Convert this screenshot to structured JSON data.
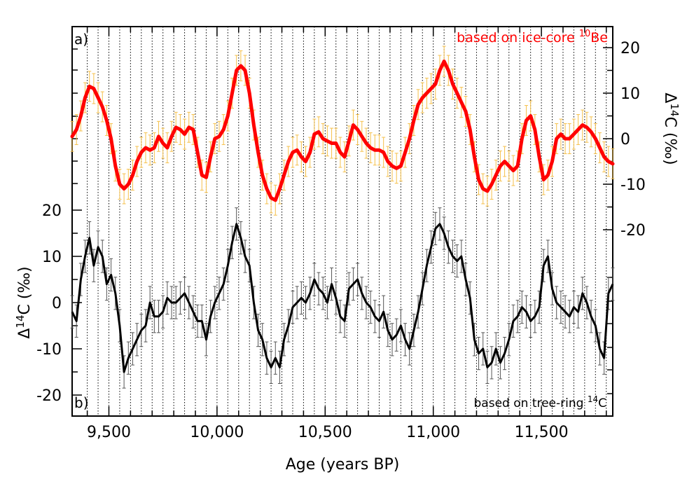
{
  "chart_data": [
    {
      "panel_label": "a)",
      "type": "line",
      "annotation": {
        "text": "based on ice-core ",
        "sup": "10",
        "suffix": "Be"
      },
      "ylabel": {
        "prefix": "Δ",
        "sup": "14",
        "suffix": "C (‰)"
      },
      "y_axis_side": "right",
      "yticks": [
        "20",
        "10",
        "0",
        "-10",
        "-20"
      ],
      "ylim": [
        -20,
        25
      ],
      "xlim": [
        9330,
        11830
      ],
      "line_color": "#ff0000",
      "errorbar_color": "#f5c04a",
      "error": 3.3,
      "series": [
        {
          "x": [
            9330,
            9350,
            9370,
            9390,
            9410,
            9430,
            9450,
            9470,
            9490,
            9510,
            9530,
            9550,
            9570,
            9590,
            9610,
            9630,
            9650,
            9670,
            9690,
            9710,
            9730,
            9750,
            9770,
            9790,
            9810,
            9830,
            9850,
            9870,
            9890,
            9910,
            9930,
            9950,
            9970,
            9990,
            10010,
            10030,
            10050,
            10070,
            10090,
            10110,
            10130,
            10150,
            10170,
            10190,
            10210,
            10230,
            10250,
            10270,
            10290,
            10310,
            10330,
            10350,
            10370,
            10390,
            10410,
            10430,
            10450,
            10470,
            10490,
            10510,
            10530,
            10550,
            10570,
            10590,
            10610,
            10630,
            10650,
            10670,
            10690,
            10710,
            10730,
            10750,
            10770,
            10790,
            10810,
            10830,
            10850,
            10870,
            10890,
            10910,
            10930,
            10950,
            10970,
            10990,
            11010,
            11030,
            11050,
            11070,
            11090,
            11110,
            11130,
            11150,
            11170,
            11190,
            11210,
            11230,
            11250,
            11270,
            11290,
            11310,
            11330,
            11350,
            11370,
            11390,
            11410,
            11430,
            11450,
            11470,
            11490,
            11510,
            11530,
            11550,
            11570,
            11590,
            11610,
            11630,
            11650,
            11670,
            11690,
            11710,
            11730,
            11750,
            11770,
            11790,
            11810,
            11830
          ],
          "y": [
            0.5,
            2,
            5,
            9,
            11.5,
            11,
            9,
            7,
            4,
            0,
            -6,
            -10,
            -11,
            -10,
            -8,
            -5,
            -3,
            -2,
            -2.5,
            -2,
            0.5,
            -1,
            -2,
            0.5,
            2.5,
            2,
            1,
            2.5,
            2,
            -3,
            -8,
            -8.5,
            -4,
            0,
            0.5,
            2,
            5,
            10,
            15,
            16,
            15,
            10,
            3,
            -3,
            -8,
            -11,
            -13,
            -13.5,
            -11,
            -8,
            -5,
            -3,
            -2.5,
            -4,
            -5,
            -3,
            1,
            1.5,
            0,
            -0.5,
            -1,
            -1,
            -3,
            -4,
            -0.5,
            3,
            2,
            0.5,
            -1,
            -2,
            -2.5,
            -2.5,
            -3,
            -5,
            -6,
            -6.5,
            -6,
            -3,
            0,
            4,
            7.5,
            9,
            10,
            11,
            12,
            15,
            17,
            15,
            12,
            10,
            8,
            6,
            2,
            -4,
            -9,
            -11,
            -11.5,
            -10,
            -8,
            -6,
            -5,
            -6,
            -7,
            -6,
            0,
            4,
            5,
            2,
            -4,
            -9,
            -8,
            -5,
            0,
            1,
            0,
            0,
            1,
            2,
            3,
            2.5,
            1.5,
            0,
            -2,
            -4,
            -5,
            -5.5
          ]
        }
      ]
    },
    {
      "panel_label": "b)",
      "type": "line",
      "annotation": {
        "text": "based on tree-ring ",
        "sup": "14",
        "suffix": "C"
      },
      "ylabel": {
        "prefix": "Δ",
        "sup": "14",
        "suffix": "C (‰)"
      },
      "y_axis_side": "left",
      "yticks": [
        "20",
        "10",
        "0",
        "-10",
        "-20"
      ],
      "ylim": [
        -22,
        23
      ],
      "xlim": [
        9330,
        11830
      ],
      "xlabel": "Age (years BP)",
      "xticks": [
        "9,500",
        "10,000",
        "10,500",
        "11,000",
        "11,500"
      ],
      "xtick_values": [
        9500,
        10000,
        10500,
        11000,
        11500
      ],
      "line_color": "#000000",
      "errorbar_color": "#555555",
      "error": 3.5,
      "series": [
        {
          "x": [
            9330,
            9350,
            9370,
            9390,
            9410,
            9430,
            9450,
            9470,
            9490,
            9510,
            9530,
            9550,
            9570,
            9590,
            9610,
            9630,
            9650,
            9670,
            9690,
            9710,
            9730,
            9750,
            9770,
            9790,
            9810,
            9830,
            9850,
            9870,
            9890,
            9910,
            9930,
            9950,
            9970,
            9990,
            10010,
            10030,
            10050,
            10070,
            10090,
            10110,
            10130,
            10150,
            10170,
            10190,
            10210,
            10230,
            10250,
            10270,
            10290,
            10310,
            10330,
            10350,
            10370,
            10390,
            10410,
            10430,
            10450,
            10470,
            10490,
            10510,
            10530,
            10550,
            10570,
            10590,
            10610,
            10630,
            10650,
            10670,
            10690,
            10710,
            10730,
            10750,
            10770,
            10790,
            10810,
            10830,
            10850,
            10870,
            10890,
            10910,
            10930,
            10950,
            10970,
            10990,
            11010,
            11030,
            11050,
            11070,
            11090,
            11110,
            11130,
            11150,
            11170,
            11190,
            11210,
            11230,
            11250,
            11270,
            11290,
            11310,
            11330,
            11350,
            11370,
            11390,
            11410,
            11430,
            11450,
            11470,
            11490,
            11510,
            11530,
            11550,
            11570,
            11590,
            11610,
            11630,
            11650,
            11670,
            11690,
            11710,
            11730,
            11750,
            11770,
            11790,
            11810,
            11830
          ],
          "y": [
            -2,
            -4,
            5,
            10,
            14,
            8,
            12,
            10,
            4,
            6,
            2,
            -5,
            -15,
            -12,
            -10,
            -8,
            -6,
            -5,
            0,
            -3,
            -3,
            -2,
            1,
            0,
            0,
            1,
            2,
            0,
            -2,
            -4,
            -4,
            -8,
            -3,
            0,
            2,
            4,
            8,
            13,
            17,
            14,
            10,
            8,
            0,
            -6,
            -8,
            -12,
            -14,
            -12,
            -14,
            -8,
            -5,
            -1,
            0,
            1,
            0,
            2,
            5,
            3,
            2,
            0,
            4,
            1,
            -3,
            -4,
            3,
            4,
            5,
            2,
            0,
            -1,
            -3,
            -4,
            -2,
            -6,
            -8,
            -7,
            -5,
            -8,
            -10,
            -6,
            -2,
            3,
            8,
            12,
            16,
            17,
            15,
            12,
            10,
            9,
            10,
            5,
            1,
            -8,
            -11,
            -10,
            -14,
            -13,
            -10,
            -13,
            -11,
            -8,
            -4,
            -3,
            -1,
            -2,
            -4,
            -3,
            -1,
            8,
            10,
            3,
            0,
            -1,
            -2,
            -3,
            -1,
            -2,
            2,
            0,
            -3,
            -5,
            -10,
            -12,
            2,
            4
          ]
        }
      ]
    }
  ]
}
